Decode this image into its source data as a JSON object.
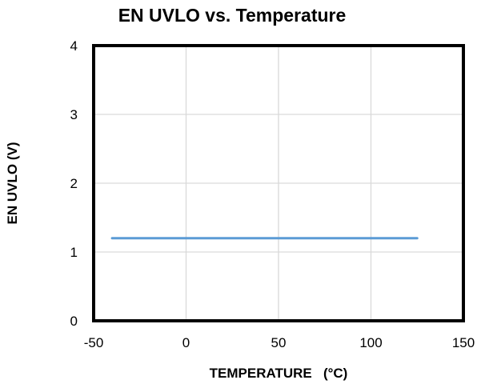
{
  "chart_data": {
    "type": "line",
    "title": "EN UVLO vs. Temperature",
    "xlabel": "TEMPERATURE   (°C)",
    "ylabel": "EN UVLO (V)",
    "xlim": [
      -50,
      150
    ],
    "ylim": [
      0,
      4
    ],
    "x_ticks": [
      -50,
      0,
      50,
      100,
      150
    ],
    "x_tick_labels": [
      "-50",
      "0",
      "50",
      "100",
      "150"
    ],
    "y_ticks": [
      0,
      1,
      2,
      3,
      4
    ],
    "y_tick_labels": [
      "0",
      "1",
      "2",
      "3",
      "4"
    ],
    "grid": true,
    "legend": "none",
    "series": [
      {
        "color": "#5b9bd5",
        "x": [
          -40,
          125
        ],
        "y": [
          1.2,
          1.2
        ]
      }
    ]
  }
}
